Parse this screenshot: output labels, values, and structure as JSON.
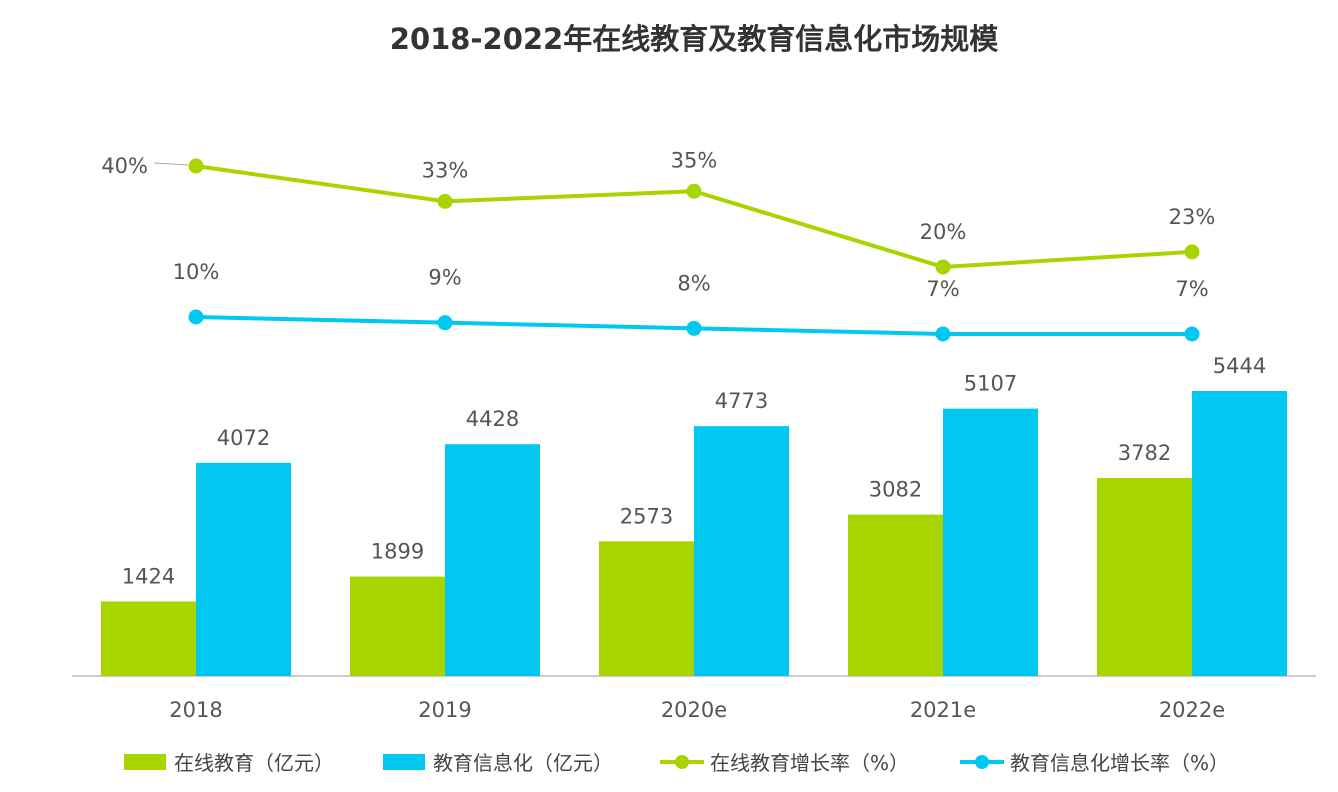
{
  "chart_data": {
    "type": "bar",
    "title": "2018-2022年在线教育及教育信息化市场规模",
    "categories": [
      "2018",
      "2019",
      "2020e",
      "2021e",
      "2022e"
    ],
    "series": [
      {
        "name": "在线教育（亿元）",
        "kind": "bar",
        "color": "#a8d400",
        "values": [
          1424,
          1899,
          2573,
          3082,
          3782
        ]
      },
      {
        "name": "教育信息化（亿元）",
        "kind": "bar",
        "color": "#00c8f0",
        "values": [
          4072,
          4428,
          4773,
          5107,
          5444
        ]
      },
      {
        "name": "在线教育增长率（%）",
        "kind": "line",
        "color": "#a8d400",
        "values": [
          40,
          33,
          35,
          20,
          23
        ]
      },
      {
        "name": "教育信息化增长率（%）",
        "kind": "line",
        "color": "#00c8f0",
        "values": [
          10,
          9,
          8,
          7,
          7
        ]
      }
    ],
    "line_labels": [
      [
        "40%",
        "33%",
        "35%",
        "20%",
        "23%"
      ],
      [
        "10%",
        "9%",
        "8%",
        "7%",
        "7%"
      ]
    ],
    "legend_position": "bottom",
    "grid": false
  }
}
